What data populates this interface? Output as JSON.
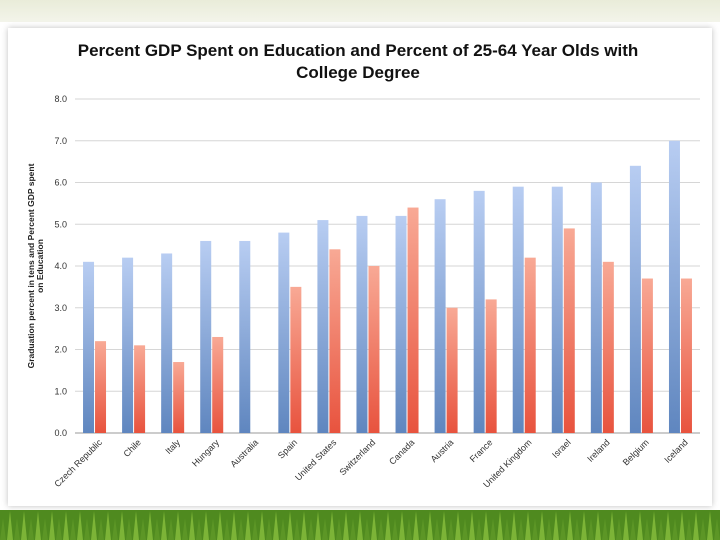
{
  "chart_data": {
    "type": "bar",
    "title_lines": [
      "Percent GDP Spent on Education and Percent of 25-64 Year Olds with",
      "College Degree"
    ],
    "xlabel": "",
    "ylabel_lines": [
      "Graduation percent in tens and Percent GDP spent",
      "on Education"
    ],
    "ylim": [
      0,
      8
    ],
    "yticks": [
      "0.0",
      "1.0",
      "2.0",
      "3.0",
      "4.0",
      "5.0",
      "6.0",
      "7.0",
      "8.0"
    ],
    "grid": true,
    "categories": [
      "Czech Republic",
      "Chile",
      "Italy",
      "Hungary",
      "Australia",
      "Spain",
      "United States",
      "Switzerland",
      "Canada",
      "Austria",
      "France",
      "United Kingdom",
      "Israel",
      "Ireland",
      "Belgium",
      "Iceland"
    ],
    "series": [
      {
        "name": "Percent GDP Spent on Education",
        "color": "#9db8e8",
        "values": [
          4.1,
          4.2,
          4.3,
          4.6,
          4.6,
          4.8,
          5.1,
          5.2,
          5.2,
          5.6,
          5.8,
          5.9,
          5.9,
          6.0,
          6.4,
          7.0
        ]
      },
      {
        "name": "Graduation percent in tens",
        "color": "#f08a78",
        "values": [
          2.2,
          2.1,
          1.7,
          2.3,
          null,
          3.5,
          4.4,
          4.0,
          5.4,
          3.0,
          3.2,
          4.2,
          4.9,
          4.1,
          3.7,
          3.7
        ]
      }
    ]
  }
}
